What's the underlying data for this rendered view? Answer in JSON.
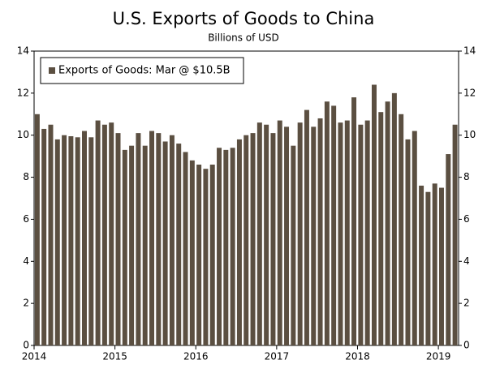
{
  "chart_data": {
    "type": "bar",
    "title": "U.S. Exports of Goods to China",
    "subtitle": "Billions of USD",
    "categories": [
      "2014",
      null,
      null,
      null,
      null,
      null,
      null,
      null,
      null,
      null,
      null,
      null,
      "2015",
      null,
      null,
      null,
      null,
      null,
      null,
      null,
      null,
      null,
      null,
      null,
      "2016",
      null,
      null,
      null,
      null,
      null,
      null,
      null,
      null,
      null,
      null,
      null,
      "2017",
      null,
      null,
      null,
      null,
      null,
      null,
      null,
      null,
      null,
      null,
      null,
      "2018",
      null,
      null,
      null,
      null,
      null,
      null,
      null,
      null,
      null,
      null,
      null,
      "2019",
      null,
      null
    ],
    "series": [
      {
        "name": "Exports of Goods: Mar @ $10.5B",
        "color": "#5b4f41",
        "values": [
          11.0,
          10.3,
          10.5,
          9.8,
          10.0,
          9.95,
          9.9,
          10.2,
          9.9,
          10.7,
          10.5,
          10.6,
          10.1,
          9.3,
          9.5,
          10.1,
          9.5,
          10.2,
          10.1,
          9.7,
          10.0,
          9.6,
          9.2,
          8.8,
          8.6,
          8.4,
          8.6,
          9.4,
          9.3,
          9.4,
          9.8,
          10.0,
          10.1,
          10.6,
          10.5,
          10.1,
          10.7,
          10.4,
          9.5,
          10.6,
          11.2,
          10.4,
          10.8,
          11.6,
          11.4,
          10.6,
          10.7,
          11.8,
          10.5,
          10.7,
          12.4,
          11.1,
          11.6,
          12.0,
          11.0,
          9.8,
          10.2,
          7.6,
          7.3,
          7.7,
          7.5,
          9.1,
          10.5
        ]
      }
    ],
    "ylim": [
      0,
      14
    ],
    "yticks": [
      0,
      2,
      4,
      6,
      8,
      10,
      12,
      14
    ],
    "y2lim": [
      0,
      14
    ],
    "y2ticks": [
      0,
      2,
      4,
      6,
      8,
      10,
      12,
      14
    ],
    "legend": "upper left",
    "grid": false
  }
}
